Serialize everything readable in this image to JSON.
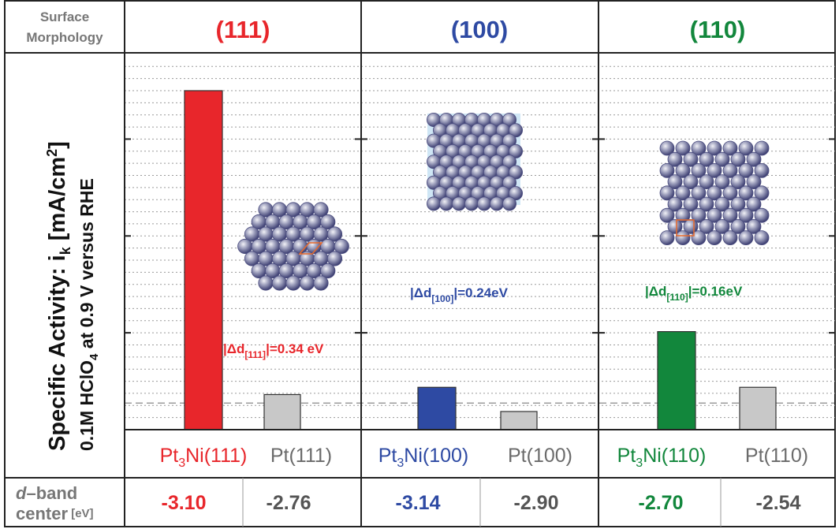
{
  "header": {
    "row_label_line1": "Surface",
    "row_label_line2": "Morphology",
    "facets": [
      {
        "label": "(111)",
        "color": "#e8262b"
      },
      {
        "label": "(100)",
        "color": "#2e4aa3"
      },
      {
        "label": "(110)",
        "color": "#12873c"
      }
    ]
  },
  "yaxis": {
    "line1_a": "Specific Activity: i",
    "line1_sub": "k",
    "line1_b": " [mA/cm",
    "line1_sup": "2",
    "line1_c": "]",
    "line2_a": "0.1M HClO",
    "line2_sub": "4",
    "line2_b": " at 0.9 V versus RHE"
  },
  "dband": {
    "label_line1": "d",
    "label_line1_rest": "–band",
    "label_line2": "center",
    "label_unit": " [eV]",
    "values": [
      "-3.10",
      "-2.76",
      "-3.14",
      "-2.90",
      "-2.70",
      "-2.54"
    ]
  },
  "annotations": [
    {
      "pre": "|Δd",
      "sub": "[111]",
      "post": "|=0.34 eV",
      "color": "#e8262b"
    },
    {
      "pre": "|Δd",
      "sub": "[100]",
      "post": "|=0.24eV",
      "color": "#2e4aa3"
    },
    {
      "pre": "|Δd",
      "sub": "[110]",
      "post": "|=0.16eV",
      "color": "#12873c"
    }
  ],
  "chart_data": {
    "type": "bar",
    "title": "",
    "xlabel": "",
    "ylabel": "Specific Activity: ik [mA/cm2] 0.1M HClO4 at 0.9 V versus RHE",
    "ylim": [
      0,
      14
    ],
    "grid": true,
    "reference_line": 1.1,
    "categories": [
      {
        "pre": "Pt",
        "sub": "3",
        "post": "Ni(111)",
        "color": "#e8262b"
      },
      {
        "pre": "Pt(111)",
        "sub": "",
        "post": "",
        "color": "#6b6b6b"
      },
      {
        "pre": "Pt",
        "sub": "3",
        "post": "Ni(100)",
        "color": "#2e4aa3"
      },
      {
        "pre": "Pt(100)",
        "sub": "",
        "post": "",
        "color": "#6b6b6b"
      },
      {
        "pre": "Pt",
        "sub": "3",
        "post": "Ni(110)",
        "color": "#12873c"
      },
      {
        "pre": "Pt(110)",
        "sub": "",
        "post": "",
        "color": "#6b6b6b"
      }
    ],
    "values": [
      14.0,
      1.45,
      1.75,
      0.75,
      4.05,
      1.75
    ],
    "bar_colors": [
      "#e8262b",
      "#c8c8c8",
      "#2e4aa3",
      "#c8c8c8",
      "#12873c",
      "#c8c8c8"
    ]
  }
}
